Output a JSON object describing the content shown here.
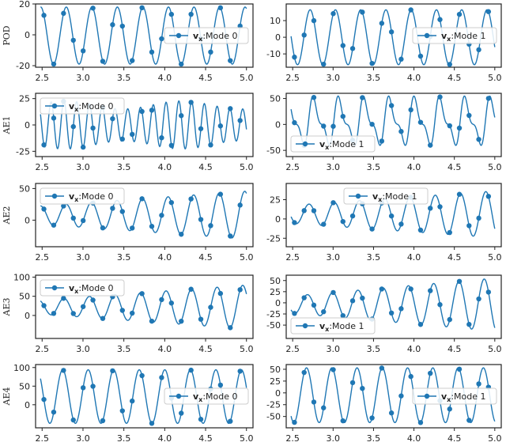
{
  "figure": {
    "colors": {
      "line": "#1f77b4",
      "marker": "#1f77b4",
      "frame": "#222222",
      "legend_border": "#cccccc"
    }
  },
  "chart_data": [
    {
      "id": "POD-0",
      "row_label": "POD",
      "type": "line",
      "xlim": [
        2.42,
        5.08
      ],
      "ylim": [
        -21,
        20
      ],
      "xticks": [
        "2.5",
        "3.0",
        "3.5",
        "4.0",
        "4.5",
        "5.0"
      ],
      "yticks": [
        20,
        0,
        -20
      ],
      "series": [
        {
          "name": "v_x:Mode 0",
          "amplitude": 18.5,
          "cycles_per_unit": 3.2,
          "phase": 0.3,
          "offset": -0.5
        }
      ],
      "legend": {
        "label_bold": "v",
        "label_sub": "x",
        "label_text": ":Mode 0",
        "position": "center-right"
      }
    },
    {
      "id": "POD-1",
      "row_label": "",
      "type": "line",
      "xlim": [
        2.42,
        5.08
      ],
      "ylim": [
        -18,
        20
      ],
      "xticks": [
        "2.5",
        "3.0",
        "3.5",
        "4.0",
        "4.5",
        "5.0"
      ],
      "yticks": [
        10,
        0,
        -10
      ],
      "series": [
        {
          "name": "v_x:Mode 1",
          "amplitude": 16.5,
          "cycles_per_unit": 3.2,
          "phase": 1.9,
          "offset": 0
        }
      ],
      "legend": {
        "label_bold": "v",
        "label_sub": "x",
        "label_text": ":Mode 1",
        "position": "center-right"
      }
    },
    {
      "id": "AE1-0",
      "row_label": "AE1",
      "type": "line",
      "xlim": [
        2.42,
        5.08
      ],
      "ylim": [
        -30,
        30
      ],
      "xticks": [
        "2.5",
        "3.0",
        "3.5",
        "4.0",
        "4.5",
        "5.0"
      ],
      "yticks": [
        25,
        0,
        -25
      ],
      "series": [
        {
          "name": "v_x:Mode 0",
          "amplitude": 19,
          "cycles_per_unit": 6.4,
          "phase": 0.2,
          "offset": 0,
          "mod": 0.2
        }
      ],
      "legend": {
        "label_bold": "v",
        "label_sub": "x",
        "label_text": ":Mode 0",
        "position": "top-left"
      }
    },
    {
      "id": "AE1-1",
      "row_label": "",
      "type": "line",
      "xlim": [
        2.42,
        5.08
      ],
      "ylim": [
        -62,
        60
      ],
      "xticks": [
        "2.5",
        "3.0",
        "3.5",
        "4.0",
        "4.5",
        "5.0"
      ],
      "yticks": [
        50,
        0,
        -50
      ],
      "series": [
        {
          "name": "v_x:Mode 1",
          "amplitude": 38,
          "cycles_per_unit": 3.2,
          "phase": 0.8,
          "offset": 5,
          "harm": 0.45
        }
      ],
      "legend": {
        "label_bold": "v",
        "label_sub": "x",
        "label_text": ":Mode 1",
        "position": "bottom-left"
      }
    },
    {
      "id": "AE2-0",
      "row_label": "AE2",
      "type": "line",
      "xlim": [
        2.42,
        5.08
      ],
      "ylim": [
        -42,
        58
      ],
      "xticks": [
        "2.5",
        "3.0",
        "3.5",
        "4.0",
        "4.5",
        "5.0"
      ],
      "yticks": [
        50,
        0
      ],
      "series": [
        {
          "name": "v_x:Mode 0",
          "amplitude": 40,
          "cycles_per_unit": 3.2,
          "phase": 0.4,
          "offset": 8,
          "grow": 0.6
        }
      ],
      "legend": {
        "label_bold": "v",
        "label_sub": "x",
        "label_text": ":Mode 0",
        "position": "top-left"
      }
    },
    {
      "id": "AE2-1",
      "row_label": "",
      "type": "line",
      "xlim": [
        2.42,
        5.08
      ],
      "ylim": [
        -36,
        46
      ],
      "xticks": [
        "2.5",
        "3.0",
        "3.5",
        "4.0",
        "4.5",
        "5.0"
      ],
      "yticks": [
        25,
        0,
        -25
      ],
      "series": [
        {
          "name": "v_x:Mode 1",
          "amplitude": 32,
          "cycles_per_unit": 3.2,
          "phase": 2.2,
          "offset": 6,
          "grow": 0.6
        }
      ],
      "legend": {
        "label_bold": "v",
        "label_sub": "x",
        "label_text": ":Mode 1",
        "position": "top-center"
      }
    },
    {
      "id": "AE3-0",
      "row_label": "AE3",
      "type": "line",
      "xlim": [
        2.42,
        5.08
      ],
      "ylim": [
        -60,
        105
      ],
      "xticks": [
        "2.5",
        "3.0",
        "3.5",
        "4.0",
        "4.5",
        "5.0"
      ],
      "yticks": [
        100,
        50,
        0
      ],
      "series": [
        {
          "name": "v_x:Mode 0",
          "amplitude": 50,
          "cycles_per_unit": 3.2,
          "phase": 0.9,
          "offset": 22,
          "grow": 0.8
        }
      ],
      "legend": {
        "label_bold": "v",
        "label_sub": "x",
        "label_text": ":Mode 0",
        "position": "top-left"
      }
    },
    {
      "id": "AE3-1",
      "row_label": "",
      "type": "line",
      "xlim": [
        2.42,
        5.08
      ],
      "ylim": [
        -80,
        62
      ],
      "xticks": [
        "2.5",
        "3.0",
        "3.5",
        "4.0",
        "4.5",
        "5.0"
      ],
      "yticks": [
        50,
        25,
        0,
        -25,
        -50
      ],
      "series": [
        {
          "name": "v_x:Mode 1",
          "amplitude": 52,
          "cycles_per_unit": 3.2,
          "phase": 2.6,
          "offset": -4,
          "grow": 0.8
        }
      ],
      "legend": {
        "label_bold": "v",
        "label_sub": "x",
        "label_text": ":Mode 1",
        "position": "bottom-left"
      }
    },
    {
      "id": "AE4-0",
      "row_label": "AE4",
      "type": "line",
      "xlim": [
        2.42,
        5.08
      ],
      "ylim": [
        -62,
        108
      ],
      "xticks": [
        "2.5",
        "3.0",
        "3.5",
        "4.0",
        "4.5",
        "5.0"
      ],
      "yticks": [
        100,
        50,
        0
      ],
      "series": [
        {
          "name": "v_x:Mode 0",
          "amplitude": 72,
          "cycles_per_unit": 3.2,
          "phase": 1.2,
          "offset": 22
        }
      ],
      "legend": {
        "label_bold": "v",
        "label_sub": "x",
        "label_text": ":Mode 0",
        "position": "center-right"
      }
    },
    {
      "id": "AE4-1",
      "row_label": "",
      "type": "line",
      "xlim": [
        2.42,
        5.08
      ],
      "ylim": [
        -74,
        60
      ],
      "xticks": [
        "2.5",
        "3.0",
        "3.5",
        "4.0",
        "4.5",
        "5.0"
      ],
      "yticks": [
        50,
        25,
        0,
        -25,
        -50
      ],
      "series": [
        {
          "name": "v_x:Mode 1",
          "amplitude": 58,
          "cycles_per_unit": 3.2,
          "phase": 2.8,
          "offset": -5
        }
      ],
      "legend": {
        "label_bold": "v",
        "label_sub": "x",
        "label_text": ":Mode 1",
        "position": "center-right"
      }
    }
  ]
}
